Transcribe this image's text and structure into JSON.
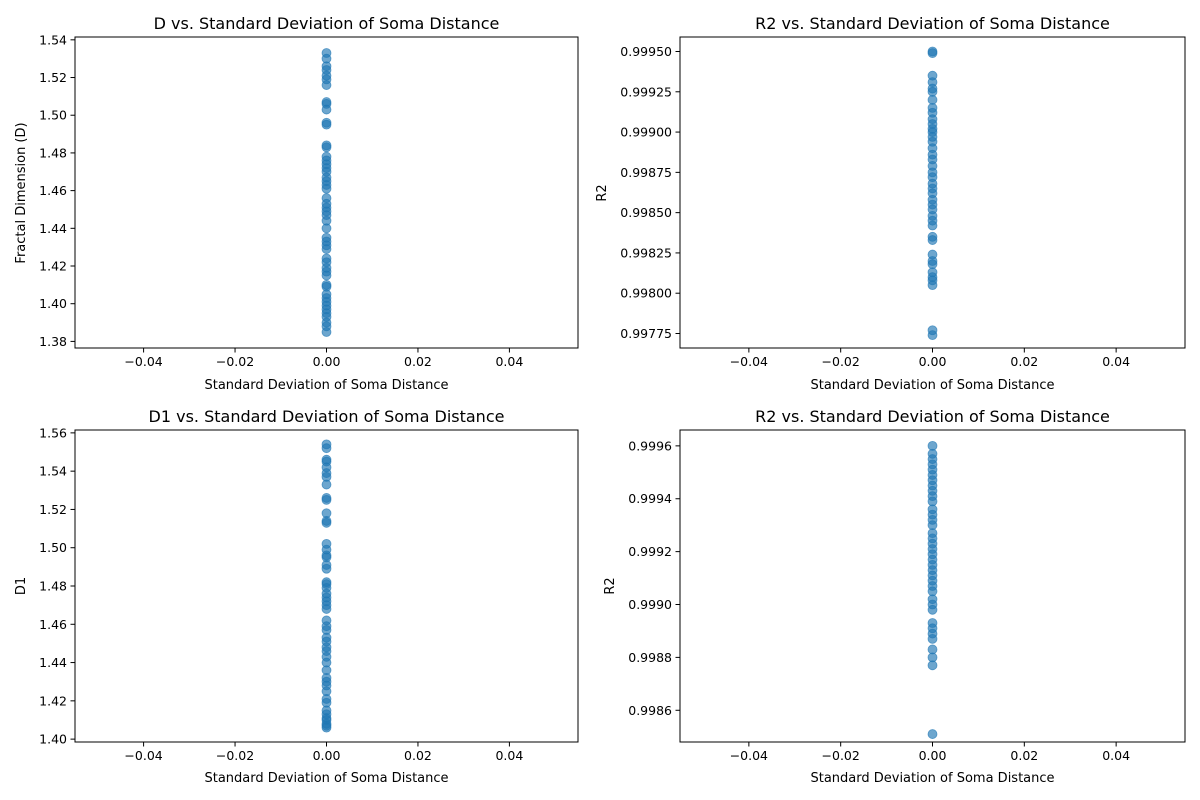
{
  "chart_data": [
    {
      "type": "scatter",
      "title": "D vs. Standard Deviation of Soma Distance",
      "xlabel": "Standard Deviation of Soma Distance",
      "ylabel": "Fractal Dimension (D)",
      "xlim": [
        -0.055,
        0.055
      ],
      "ylim": [
        1.3765,
        1.5415
      ],
      "xticks": [
        -0.04,
        -0.02,
        0.0,
        0.02,
        0.04
      ],
      "xtick_labels": [
        "−0.04",
        "−0.02",
        "0.00",
        "0.02",
        "0.04"
      ],
      "yticks": [
        1.38,
        1.4,
        1.42,
        1.44,
        1.46,
        1.48,
        1.5,
        1.52,
        1.54
      ],
      "ytick_labels": [
        "1.38",
        "1.40",
        "1.42",
        "1.44",
        "1.46",
        "1.48",
        "1.50",
        "1.52",
        "1.54"
      ],
      "grid": false,
      "marker_color": "#1f77b4",
      "marker_alpha": 0.65,
      "x": 0.0,
      "y": [
        1.533,
        1.53,
        1.526,
        1.524,
        1.521,
        1.519,
        1.516,
        1.507,
        1.506,
        1.503,
        1.496,
        1.495,
        1.484,
        1.483,
        1.478,
        1.476,
        1.474,
        1.472,
        1.47,
        1.467,
        1.465,
        1.463,
        1.461,
        1.456,
        1.453,
        1.451,
        1.449,
        1.447,
        1.444,
        1.44,
        1.435,
        1.433,
        1.431,
        1.429,
        1.424,
        1.422,
        1.419,
        1.417,
        1.415,
        1.41,
        1.409,
        1.405,
        1.403,
        1.401,
        1.399,
        1.397,
        1.395,
        1.393,
        1.39,
        1.388,
        1.385
      ]
    },
    {
      "type": "scatter",
      "title": "R2 vs. Standard Deviation of Soma Distance",
      "xlabel": "Standard Deviation of Soma Distance",
      "ylabel": "R2",
      "xlim": [
        -0.055,
        0.055
      ],
      "ylim": [
        0.99766,
        0.99959
      ],
      "xticks": [
        -0.04,
        -0.02,
        0.0,
        0.02,
        0.04
      ],
      "xtick_labels": [
        "−0.04",
        "−0.02",
        "0.00",
        "0.02",
        "0.04"
      ],
      "yticks": [
        0.99775,
        0.998,
        0.99825,
        0.9985,
        0.99875,
        0.999,
        0.99925,
        0.9995
      ],
      "ytick_labels": [
        "0.99775",
        "0.99800",
        "0.99825",
        "0.99850",
        "0.99875",
        "0.99900",
        "0.99925",
        "0.99950"
      ],
      "grid": false,
      "marker_color": "#1f77b4",
      "marker_alpha": 0.65,
      "x": 0.0,
      "y": [
        0.9995,
        0.99949,
        0.99935,
        0.99931,
        0.99927,
        0.99925,
        0.9992,
        0.99915,
        0.99912,
        0.99908,
        0.99905,
        0.99902,
        0.999,
        0.99897,
        0.99894,
        0.9989,
        0.99886,
        0.99883,
        0.99879,
        0.99875,
        0.99872,
        0.99868,
        0.99865,
        0.99862,
        0.99858,
        0.99855,
        0.99852,
        0.99848,
        0.99845,
        0.99842,
        0.99835,
        0.99833,
        0.99824,
        0.9982,
        0.99818,
        0.99813,
        0.9981,
        0.99808,
        0.99805,
        0.99777,
        0.99774
      ]
    },
    {
      "type": "scatter",
      "title": "D1 vs. Standard Deviation of Soma Distance",
      "xlabel": "Standard Deviation of Soma Distance",
      "ylabel": "D1",
      "xlim": [
        -0.055,
        0.055
      ],
      "ylim": [
        1.3985,
        1.5615
      ],
      "xticks": [
        -0.04,
        -0.02,
        0.0,
        0.02,
        0.04
      ],
      "xtick_labels": [
        "−0.04",
        "−0.02",
        "0.00",
        "0.02",
        "0.04"
      ],
      "yticks": [
        1.4,
        1.42,
        1.44,
        1.46,
        1.48,
        1.5,
        1.52,
        1.54,
        1.56
      ],
      "ytick_labels": [
        "1.40",
        "1.42",
        "1.44",
        "1.46",
        "1.48",
        "1.50",
        "1.52",
        "1.54",
        "1.56"
      ],
      "grid": false,
      "marker_color": "#1f77b4",
      "marker_alpha": 0.65,
      "x": 0.0,
      "y": [
        1.554,
        1.552,
        1.546,
        1.545,
        1.542,
        1.539,
        1.537,
        1.533,
        1.526,
        1.525,
        1.518,
        1.514,
        1.513,
        1.502,
        1.499,
        1.496,
        1.495,
        1.491,
        1.489,
        1.482,
        1.481,
        1.479,
        1.476,
        1.474,
        1.472,
        1.47,
        1.468,
        1.462,
        1.459,
        1.457,
        1.453,
        1.451,
        1.448,
        1.446,
        1.443,
        1.44,
        1.436,
        1.432,
        1.43,
        1.428,
        1.425,
        1.421,
        1.419,
        1.415,
        1.413,
        1.411,
        1.41,
        1.408,
        1.407,
        1.406
      ]
    },
    {
      "type": "scatter",
      "title": "R2 vs. Standard Deviation of Soma Distance",
      "xlabel": "Standard Deviation of Soma Distance",
      "ylabel": "R2",
      "xlim": [
        -0.055,
        0.055
      ],
      "ylim": [
        0.99848,
        0.99966
      ],
      "xticks": [
        -0.04,
        -0.02,
        0.0,
        0.02,
        0.04
      ],
      "xtick_labels": [
        "−0.04",
        "−0.02",
        "0.00",
        "0.02",
        "0.04"
      ],
      "yticks": [
        0.9986,
        0.9988,
        0.999,
        0.9992,
        0.9994,
        0.9996
      ],
      "ytick_labels": [
        "0.9986",
        "0.9988",
        "0.9990",
        "0.9992",
        "0.9994",
        "0.9996"
      ],
      "grid": false,
      "marker_color": "#1f77b4",
      "marker_alpha": 0.65,
      "x": 0.0,
      "y": [
        0.9996,
        0.99957,
        0.99955,
        0.99953,
        0.99951,
        0.99949,
        0.99947,
        0.99945,
        0.99943,
        0.99941,
        0.99939,
        0.99936,
        0.99934,
        0.99932,
        0.9993,
        0.99927,
        0.99925,
        0.99923,
        0.99921,
        0.99919,
        0.99917,
        0.99915,
        0.99913,
        0.99911,
        0.99909,
        0.99907,
        0.99905,
        0.99902,
        0.999,
        0.99898,
        0.99893,
        0.99891,
        0.99889,
        0.99887,
        0.99883,
        0.9988,
        0.99877,
        0.99851
      ]
    }
  ]
}
